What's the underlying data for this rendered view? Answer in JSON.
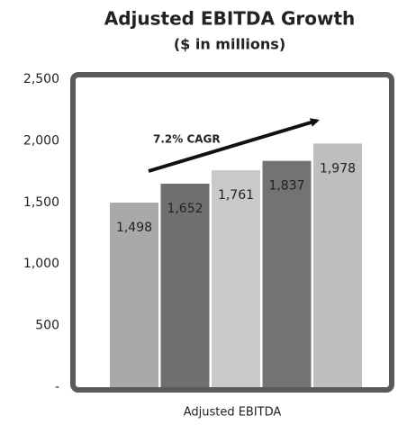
{
  "chart_data": {
    "type": "bar",
    "title": "Adjusted EBITDA Growth",
    "subtitle": "($ in millions)",
    "x_label": "Adjusted EBITDA",
    "annotation": "7.2% CAGR",
    "categories": [
      null,
      null,
      null,
      null,
      null
    ],
    "values": [
      1498,
      1652,
      1761,
      1837,
      1978
    ],
    "value_labels": [
      "1,498",
      "1,652",
      "1,761",
      "1,837",
      "1,978"
    ],
    "colors": [
      "#a9a9a9",
      "#6f6f6f",
      "#c9c9c9",
      "#737373",
      "#bebebe"
    ],
    "ylim": [
      0,
      2500
    ],
    "yticks": [
      {
        "value": 0,
        "label": "-"
      },
      500,
      {
        "value": 1000,
        "label": "1,000"
      },
      {
        "value": 1500,
        "label": "1,500"
      },
      {
        "value": 2000,
        "label": "2,000"
      },
      {
        "value": 2500,
        "label": "2,500"
      }
    ],
    "grid": false
  }
}
